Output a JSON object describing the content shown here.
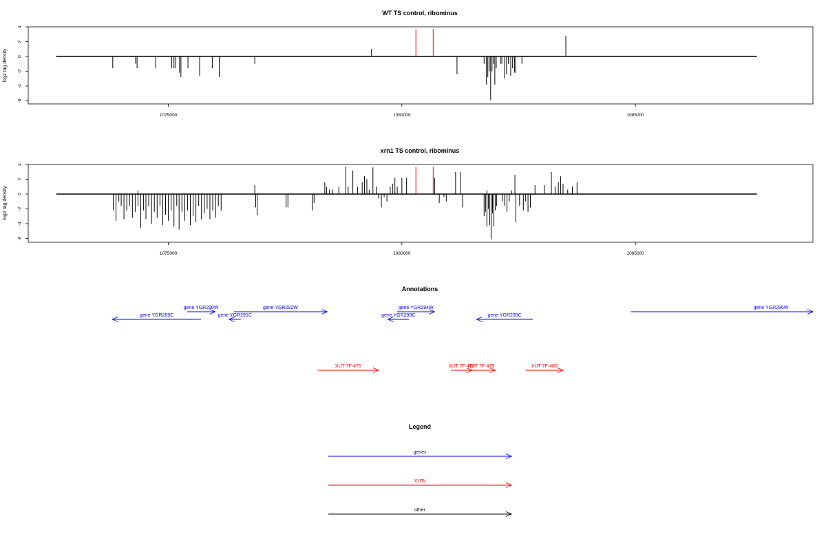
{
  "chart_data": [
    {
      "type": "bar",
      "title": "WT TS control, ribominus",
      "ylabel": "log2 tag density",
      "xlabel": "",
      "xlim": [
        1072000,
        1088800
      ],
      "ylim": [
        -6.5,
        4
      ],
      "yticks": [
        4,
        2,
        0,
        -2,
        -4,
        -6
      ],
      "xticks": [
        1075000,
        1080000,
        1085000
      ],
      "xtick_labels": [
        "1075000",
        "1080000",
        "1085000"
      ],
      "baseline": {
        "from": 1072600,
        "to": 1087600
      },
      "color": "#000000",
      "highlight_color": "#ff0000",
      "bars": [
        {
          "x": 1073810,
          "y": -1.6
        },
        {
          "x": 1074300,
          "y": -1.0
        },
        {
          "x": 1074330,
          "y": -1.6
        },
        {
          "x": 1074730,
          "y": -1.6
        },
        {
          "x": 1075070,
          "y": -1.6
        },
        {
          "x": 1075120,
          "y": -1.6
        },
        {
          "x": 1075160,
          "y": -1.6
        },
        {
          "x": 1075240,
          "y": -2.2
        },
        {
          "x": 1075270,
          "y": -2.8
        },
        {
          "x": 1075420,
          "y": -1.6
        },
        {
          "x": 1075670,
          "y": -2.6
        },
        {
          "x": 1075940,
          "y": -1.6
        },
        {
          "x": 1076090,
          "y": -2.8
        },
        {
          "x": 1076850,
          "y": -1.0
        },
        {
          "x": 1079350,
          "y": 1.0
        },
        {
          "x": 1081180,
          "y": -2.4
        },
        {
          "x": 1081760,
          "y": -1.0
        },
        {
          "x": 1081810,
          "y": -3.8
        },
        {
          "x": 1081840,
          "y": -2.8
        },
        {
          "x": 1081870,
          "y": -2.0
        },
        {
          "x": 1081900,
          "y": -5.9
        },
        {
          "x": 1081930,
          "y": -2.0
        },
        {
          "x": 1081960,
          "y": -1.0
        },
        {
          "x": 1081990,
          "y": -3.8
        },
        {
          "x": 1082020,
          "y": -1.6
        },
        {
          "x": 1082110,
          "y": -1.0
        },
        {
          "x": 1082140,
          "y": -1.0
        },
        {
          "x": 1082200,
          "y": -3.0
        },
        {
          "x": 1082240,
          "y": -2.4
        },
        {
          "x": 1082280,
          "y": -1.0
        },
        {
          "x": 1082330,
          "y": -2.6
        },
        {
          "x": 1082370,
          "y": -1.6
        },
        {
          "x": 1082410,
          "y": -2.2
        },
        {
          "x": 1082440,
          "y": -2.2
        },
        {
          "x": 1082570,
          "y": -1.0
        },
        {
          "x": 1083510,
          "y": 2.8
        }
      ],
      "highlight_bars": [
        {
          "x": 1080300,
          "y": 3.7
        },
        {
          "x": 1080670,
          "y": 3.7
        }
      ]
    },
    {
      "type": "bar",
      "title": "xrn1 TS control, ribominus",
      "ylabel": "log2 tag density",
      "xlabel": "",
      "xlim": [
        1072000,
        1088800
      ],
      "ylim": [
        -6.5,
        4
      ],
      "yticks": [
        4,
        2,
        0,
        -2,
        -4,
        -6
      ],
      "xticks": [
        1075000,
        1080000,
        1085000
      ],
      "xtick_labels": [
        "1075000",
        "1080000",
        "1085000"
      ],
      "baseline": {
        "from": 1072600,
        "to": 1087600
      },
      "color": "#000000",
      "highlight_color": "#ff0000",
      "bars": [
        {
          "x": 1073820,
          "y": -2.2
        },
        {
          "x": 1073880,
          "y": -3.6
        },
        {
          "x": 1073940,
          "y": -1.0
        },
        {
          "x": 1073990,
          "y": -1.6
        },
        {
          "x": 1074050,
          "y": -3.4
        },
        {
          "x": 1074110,
          "y": -2.2
        },
        {
          "x": 1074170,
          "y": -1.6
        },
        {
          "x": 1074230,
          "y": -3.2
        },
        {
          "x": 1074290,
          "y": -2.4
        },
        {
          "x": 1074350,
          "y": -1.6
        },
        {
          "x": 1074410,
          "y": -4.6
        },
        {
          "x": 1074470,
          "y": -2.2
        },
        {
          "x": 1074520,
          "y": -3.4
        },
        {
          "x": 1074580,
          "y": -1.6
        },
        {
          "x": 1074640,
          "y": -4.0
        },
        {
          "x": 1074700,
          "y": -2.4
        },
        {
          "x": 1074760,
          "y": -3.2
        },
        {
          "x": 1074820,
          "y": -1.6
        },
        {
          "x": 1074880,
          "y": -4.2
        },
        {
          "x": 1074940,
          "y": -2.8
        },
        {
          "x": 1075000,
          "y": -3.6
        },
        {
          "x": 1075060,
          "y": -2.2
        },
        {
          "x": 1075120,
          "y": -4.4
        },
        {
          "x": 1075180,
          "y": -1.6
        },
        {
          "x": 1075230,
          "y": -4.8
        },
        {
          "x": 1075290,
          "y": -2.4
        },
        {
          "x": 1075350,
          "y": -3.6
        },
        {
          "x": 1075410,
          "y": -2.2
        },
        {
          "x": 1075470,
          "y": -4.2
        },
        {
          "x": 1075530,
          "y": -3.0
        },
        {
          "x": 1075590,
          "y": -3.8
        },
        {
          "x": 1075650,
          "y": -1.6
        },
        {
          "x": 1075710,
          "y": -3.4
        },
        {
          "x": 1075770,
          "y": -2.6
        },
        {
          "x": 1075830,
          "y": -2.0
        },
        {
          "x": 1075890,
          "y": -3.4
        },
        {
          "x": 1075950,
          "y": -2.2
        },
        {
          "x": 1076010,
          "y": -3.2
        },
        {
          "x": 1076070,
          "y": -1.6
        },
        {
          "x": 1076130,
          "y": -2.2
        },
        {
          "x": 1074350,
          "y": 0.5
        },
        {
          "x": 1076850,
          "y": 1.2
        },
        {
          "x": 1076870,
          "y": -1.8
        },
        {
          "x": 1076900,
          "y": -2.9
        },
        {
          "x": 1077520,
          "y": -1.8
        },
        {
          "x": 1077560,
          "y": -1.8
        },
        {
          "x": 1078080,
          "y": -2.2
        },
        {
          "x": 1078120,
          "y": -1.2
        },
        {
          "x": 1078350,
          "y": 1.6
        },
        {
          "x": 1078390,
          "y": 1.0
        },
        {
          "x": 1078450,
          "y": 0.6
        },
        {
          "x": 1078520,
          "y": 0.6
        },
        {
          "x": 1078650,
          "y": 1.0
        },
        {
          "x": 1078800,
          "y": 3.7
        },
        {
          "x": 1078850,
          "y": 1.0
        },
        {
          "x": 1078950,
          "y": 3.2
        },
        {
          "x": 1079050,
          "y": 1.0
        },
        {
          "x": 1079150,
          "y": 1.6
        },
        {
          "x": 1079200,
          "y": 2.4
        },
        {
          "x": 1079250,
          "y": 2.0
        },
        {
          "x": 1079300,
          "y": 0.6
        },
        {
          "x": 1079380,
          "y": 3.6
        },
        {
          "x": 1079450,
          "y": 1.0
        },
        {
          "x": 1079500,
          "y": -0.6
        },
        {
          "x": 1079560,
          "y": -1.8
        },
        {
          "x": 1079620,
          "y": -0.4
        },
        {
          "x": 1079680,
          "y": -1.0
        },
        {
          "x": 1079750,
          "y": 1.0
        },
        {
          "x": 1079800,
          "y": 1.4
        },
        {
          "x": 1079850,
          "y": 2.2
        },
        {
          "x": 1079900,
          "y": 1.0
        },
        {
          "x": 1080000,
          "y": 2.2
        },
        {
          "x": 1080100,
          "y": 2.2
        },
        {
          "x": 1080700,
          "y": 2.2
        },
        {
          "x": 1080800,
          "y": -1.2
        },
        {
          "x": 1080900,
          "y": -0.4
        },
        {
          "x": 1080950,
          "y": -1.0
        },
        {
          "x": 1081150,
          "y": 3.0
        },
        {
          "x": 1081250,
          "y": 3.0
        },
        {
          "x": 1081300,
          "y": -1.8
        },
        {
          "x": 1081760,
          "y": -3.0
        },
        {
          "x": 1081790,
          "y": -2.4
        },
        {
          "x": 1081820,
          "y": -4.4
        },
        {
          "x": 1081850,
          "y": -2.0
        },
        {
          "x": 1081880,
          "y": -4.2
        },
        {
          "x": 1081910,
          "y": -6.1
        },
        {
          "x": 1081940,
          "y": -2.6
        },
        {
          "x": 1081970,
          "y": -4.4
        },
        {
          "x": 1082000,
          "y": -2.2
        },
        {
          "x": 1082030,
          "y": -1.6
        },
        {
          "x": 1081820,
          "y": 0.5
        },
        {
          "x": 1082150,
          "y": -1.0
        },
        {
          "x": 1082200,
          "y": -1.6
        },
        {
          "x": 1082250,
          "y": -2.4
        },
        {
          "x": 1082300,
          "y": -1.0
        },
        {
          "x": 1082350,
          "y": 0.5
        },
        {
          "x": 1082420,
          "y": 2.6
        },
        {
          "x": 1082440,
          "y": -3.8
        },
        {
          "x": 1082520,
          "y": -1.6
        },
        {
          "x": 1082600,
          "y": -2.2
        },
        {
          "x": 1082650,
          "y": -1.0
        },
        {
          "x": 1082700,
          "y": -2.4
        },
        {
          "x": 1082750,
          "y": -1.8
        },
        {
          "x": 1082850,
          "y": 1.2
        },
        {
          "x": 1083050,
          "y": 1.2
        },
        {
          "x": 1083200,
          "y": 3.0
        },
        {
          "x": 1083280,
          "y": 1.0
        },
        {
          "x": 1083350,
          "y": 1.6
        },
        {
          "x": 1083400,
          "y": 2.4
        },
        {
          "x": 1083450,
          "y": 1.4
        },
        {
          "x": 1083550,
          "y": 0.6
        },
        {
          "x": 1083650,
          "y": 1.0
        },
        {
          "x": 1083750,
          "y": 1.6
        }
      ],
      "highlight_bars": [
        {
          "x": 1080300,
          "y": 3.7
        },
        {
          "x": 1080670,
          "y": 3.7
        }
      ]
    }
  ],
  "annotations": {
    "title": "Annotations",
    "genes": [
      {
        "label": "gene YGR289C",
        "from": 1073800,
        "to": 1075700,
        "direction": "left",
        "row": 1
      },
      {
        "label": "gene YGR290W",
        "from": 1075400,
        "to": 1076000,
        "direction": "right",
        "row": 0
      },
      {
        "label": "gene YGR291C",
        "from": 1076300,
        "to": 1076550,
        "direction": "left",
        "row": 1
      },
      {
        "label": "gene YGR292W",
        "from": 1076400,
        "to": 1078400,
        "direction": "right",
        "row": 0
      },
      {
        "label": "gene YGR293C",
        "from": 1079700,
        "to": 1080150,
        "direction": "left",
        "row": 1
      },
      {
        "label": "gene YGR294W",
        "from": 1079900,
        "to": 1080700,
        "direction": "right",
        "row": 0
      },
      {
        "label": "gene YGR295C",
        "from": 1081600,
        "to": 1082800,
        "direction": "left",
        "row": 1
      },
      {
        "label": "gene YGR296W",
        "from": 1084900,
        "to": 1088800,
        "direction": "right",
        "row": 0
      }
    ],
    "xuts": [
      {
        "label": "XUT 7F-475",
        "from": 1078200,
        "to": 1079500,
        "direction": "right"
      },
      {
        "label": "XUT 7F-478",
        "from": 1081050,
        "to": 1081500,
        "direction": "right"
      },
      {
        "label": "XUT 7F-479",
        "from": 1081400,
        "to": 1082000,
        "direction": "right"
      },
      {
        "label": "XUT 7F-480",
        "from": 1082650,
        "to": 1083450,
        "direction": "right"
      }
    ],
    "gene_color": "#0000ff",
    "xut_color": "#ff0000"
  },
  "legend": {
    "title": "Legend",
    "items": [
      {
        "label": "genes",
        "color": "#0000ff"
      },
      {
        "label": "XUTs",
        "color": "#ff0000"
      },
      {
        "label": "other",
        "color": "#000000"
      }
    ]
  }
}
